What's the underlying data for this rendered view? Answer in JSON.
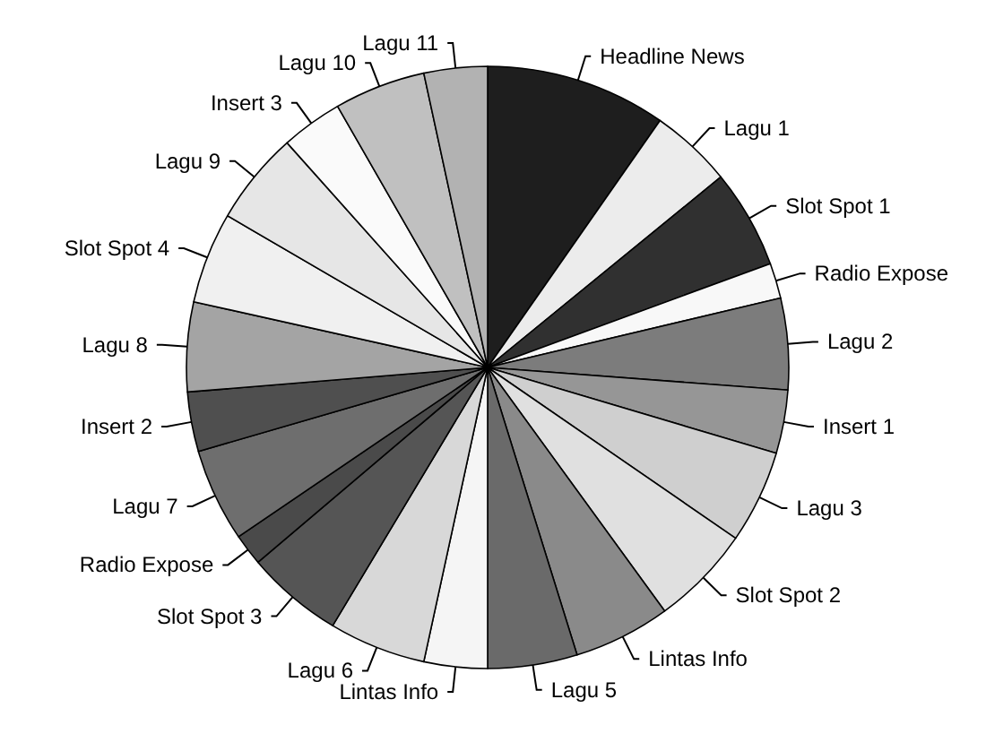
{
  "chart_data": {
    "type": "pie",
    "categories": [
      "Headline News",
      "Lagu 1",
      "Slot Spot 1",
      "Radio Expose",
      "Lagu 2",
      "Insert 1",
      "Lagu 3",
      "Slot Spot 2",
      "Lintas Info",
      "Lagu 5",
      "Lintas Info",
      "Lagu 6",
      "Slot Spot 3",
      "Radio Expose",
      "Lagu 7",
      "Insert 2",
      "Lagu 8",
      "Slot Spot 4",
      "Lagu 9",
      "Insert 3",
      "Lagu 10",
      "Lagu 11"
    ],
    "values": [
      9.7,
      4.4,
      5.3,
      1.9,
      4.9,
      3.4,
      5.0,
      5.4,
      5.2,
      4.8,
      3.4,
      5.2,
      5.2,
      1.7,
      5.0,
      3.2,
      4.8,
      4.9,
      5.0,
      3.3,
      4.9,
      3.4
    ],
    "colors": [
      "#1e1e1e",
      "#ececec",
      "#303030",
      "#f8f8f8",
      "#7c7c7c",
      "#969696",
      "#cfcfcf",
      "#e0e0e0",
      "#8a8a8a",
      "#6a6a6a",
      "#f5f5f5",
      "#d8d8d8",
      "#555555",
      "#4a4a4a",
      "#6e6e6e",
      "#4f4f4f",
      "#a4a4a4",
      "#f0f0f0",
      "#e6e6e6",
      "#fafafa",
      "#c0c0c0",
      "#b2b2b2"
    ],
    "legend": false
  }
}
